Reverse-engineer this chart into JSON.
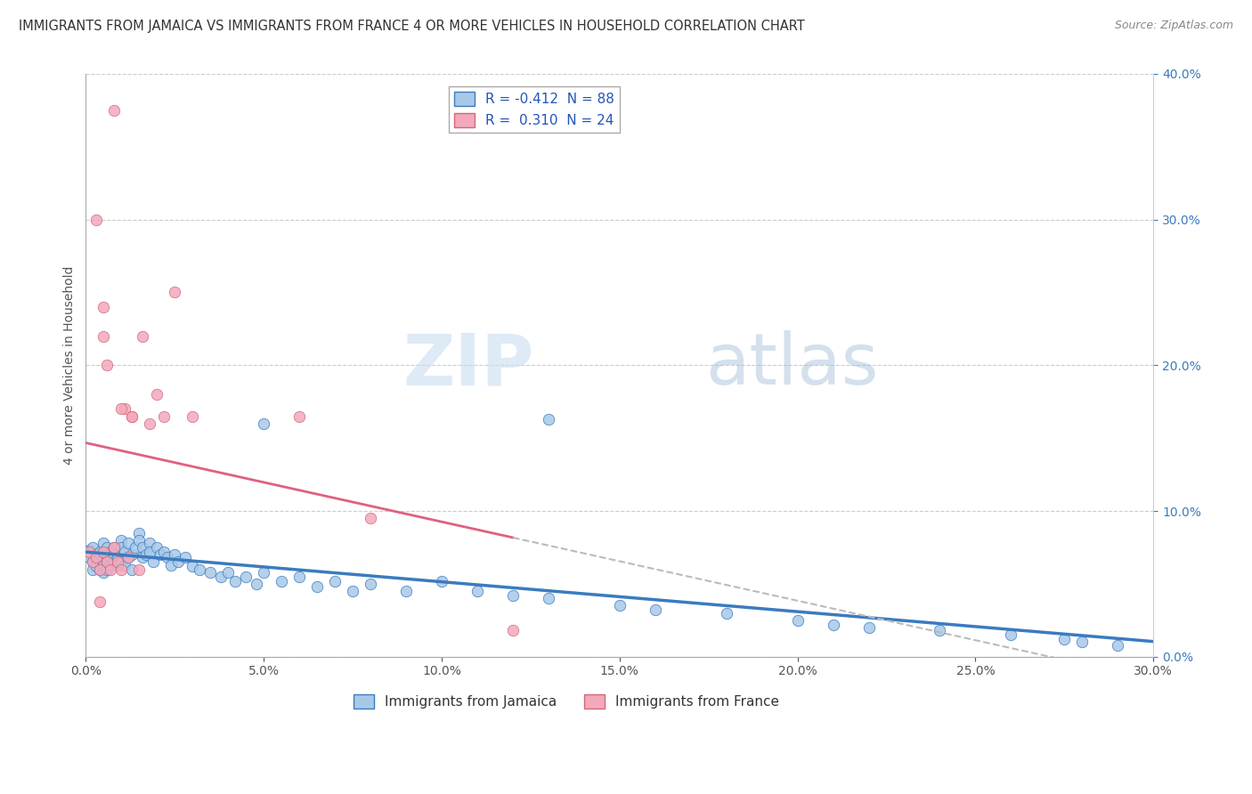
{
  "title": "IMMIGRANTS FROM JAMAICA VS IMMIGRANTS FROM FRANCE 4 OR MORE VEHICLES IN HOUSEHOLD CORRELATION CHART",
  "source": "Source: ZipAtlas.com",
  "ylabel": "4 or more Vehicles in Household",
  "legend_label_1": "Immigrants from Jamaica",
  "legend_label_2": "Immigrants from France",
  "R1": -0.412,
  "N1": 88,
  "R2": 0.31,
  "N2": 24,
  "xlim": [
    0.0,
    0.3
  ],
  "ylim": [
    0.0,
    0.4
  ],
  "xticks": [
    0.0,
    0.05,
    0.1,
    0.15,
    0.2,
    0.25,
    0.3
  ],
  "yticks": [
    0.0,
    0.1,
    0.2,
    0.3,
    0.4
  ],
  "color_jamaica": "#a8c8e8",
  "color_france": "#f4a8bc",
  "color_trend_jamaica": "#3a7bbf",
  "color_trend_france": "#e06080",
  "watermark_zip": "ZIP",
  "watermark_atlas": "atlas",
  "jamaica_x": [
    0.001,
    0.001,
    0.002,
    0.002,
    0.002,
    0.003,
    0.003,
    0.003,
    0.004,
    0.004,
    0.004,
    0.004,
    0.005,
    0.005,
    0.005,
    0.005,
    0.005,
    0.006,
    0.006,
    0.006,
    0.006,
    0.007,
    0.007,
    0.007,
    0.008,
    0.008,
    0.008,
    0.009,
    0.009,
    0.01,
    0.01,
    0.01,
    0.011,
    0.011,
    0.012,
    0.012,
    0.013,
    0.013,
    0.014,
    0.015,
    0.015,
    0.016,
    0.016,
    0.017,
    0.018,
    0.018,
    0.019,
    0.02,
    0.021,
    0.022,
    0.023,
    0.024,
    0.025,
    0.026,
    0.028,
    0.03,
    0.032,
    0.035,
    0.038,
    0.04,
    0.042,
    0.045,
    0.048,
    0.05,
    0.055,
    0.06,
    0.065,
    0.07,
    0.075,
    0.08,
    0.09,
    0.1,
    0.11,
    0.12,
    0.13,
    0.15,
    0.16,
    0.18,
    0.2,
    0.21,
    0.22,
    0.24,
    0.26,
    0.275,
    0.28,
    0.29,
    0.05,
    0.13
  ],
  "jamaica_y": [
    0.073,
    0.068,
    0.075,
    0.065,
    0.06,
    0.07,
    0.068,
    0.062,
    0.072,
    0.068,
    0.065,
    0.06,
    0.078,
    0.072,
    0.068,
    0.063,
    0.058,
    0.075,
    0.07,
    0.065,
    0.06,
    0.072,
    0.068,
    0.063,
    0.075,
    0.07,
    0.065,
    0.068,
    0.063,
    0.08,
    0.075,
    0.065,
    0.072,
    0.063,
    0.078,
    0.068,
    0.07,
    0.06,
    0.075,
    0.085,
    0.08,
    0.075,
    0.068,
    0.07,
    0.078,
    0.072,
    0.065,
    0.075,
    0.07,
    0.072,
    0.068,
    0.063,
    0.07,
    0.065,
    0.068,
    0.062,
    0.06,
    0.058,
    0.055,
    0.058,
    0.052,
    0.055,
    0.05,
    0.058,
    0.052,
    0.055,
    0.048,
    0.052,
    0.045,
    0.05,
    0.045,
    0.052,
    0.045,
    0.042,
    0.04,
    0.035,
    0.032,
    0.03,
    0.025,
    0.022,
    0.02,
    0.018,
    0.015,
    0.012,
    0.01,
    0.008,
    0.16,
    0.163
  ],
  "france_x": [
    0.001,
    0.002,
    0.003,
    0.004,
    0.004,
    0.005,
    0.006,
    0.007,
    0.008,
    0.009,
    0.01,
    0.011,
    0.012,
    0.013,
    0.015,
    0.016,
    0.018,
    0.02,
    0.022,
    0.025,
    0.03,
    0.06,
    0.08,
    0.12
  ],
  "france_y": [
    0.072,
    0.065,
    0.068,
    0.06,
    0.038,
    0.072,
    0.065,
    0.06,
    0.075,
    0.065,
    0.06,
    0.17,
    0.068,
    0.165,
    0.06,
    0.22,
    0.16,
    0.18,
    0.165,
    0.25,
    0.165,
    0.165,
    0.095,
    0.018
  ],
  "france_outlier_x": [
    0.008,
    0.003,
    0.005,
    0.005,
    0.006,
    0.01,
    0.013
  ],
  "france_outlier_y": [
    0.375,
    0.3,
    0.24,
    0.22,
    0.2,
    0.17,
    0.165
  ]
}
